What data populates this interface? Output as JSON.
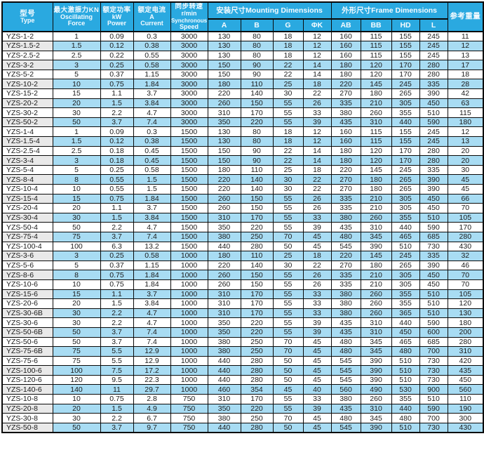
{
  "table": {
    "title_semantic": "YZS vibration motor specification table",
    "columns": {
      "type": {
        "zh": "型号",
        "en": "Type"
      },
      "force": {
        "zh": "最大激振力KN",
        "en1": "Oscillating",
        "en2": "Force"
      },
      "power": {
        "zh": "额定功率",
        "unit": "kW",
        "en": "Power"
      },
      "current": {
        "zh": "额定电流",
        "unit": "A",
        "en": "Current"
      },
      "speed": {
        "zh": "同步转速",
        "unit": "r/min",
        "en1": "Synchronous",
        "en2": "Speed"
      },
      "mounting": {
        "label": "安装尺寸Mounting Dimensions",
        "subs": [
          "A",
          "B",
          "G",
          "ΦK"
        ]
      },
      "frame": {
        "label": "外形尺寸Frame Dimensions",
        "subs": [
          "AB",
          "BB",
          "HD",
          "L"
        ]
      },
      "weight": {
        "zh": "参考重量"
      }
    },
    "rows": [
      {
        "model": "YZS-1-2",
        "values": [
          "1",
          "0.09",
          "0.3",
          "3000",
          "130",
          "80",
          "18",
          "12",
          "160",
          "115",
          "155",
          "245",
          "11"
        ]
      },
      {
        "model": "YZS-1.5-2",
        "values": [
          "1.5",
          "0.12",
          "0.38",
          "3000",
          "130",
          "80",
          "18",
          "12",
          "160",
          "115",
          "155",
          "245",
          "12"
        ]
      },
      {
        "model": "YZS-2.5-2",
        "values": [
          "2.5",
          "0.22",
          "0.55",
          "3000",
          "130",
          "80",
          "18",
          "12",
          "160",
          "115",
          "155",
          "245",
          "13"
        ]
      },
      {
        "model": "YZS-3-2",
        "values": [
          "3",
          "0.25",
          "0.58",
          "3000",
          "150",
          "90",
          "22",
          "14",
          "180",
          "120",
          "170",
          "280",
          "17"
        ]
      },
      {
        "model": "YZS-5-2",
        "values": [
          "5",
          "0.37",
          "1.15",
          "3000",
          "150",
          "90",
          "22",
          "14",
          "180",
          "120",
          "170",
          "280",
          "18"
        ]
      },
      {
        "model": "YZS-10-2",
        "values": [
          "10",
          "0.75",
          "1.84",
          "3000",
          "180",
          "110",
          "25",
          "18",
          "220",
          "145",
          "245",
          "335",
          "28"
        ]
      },
      {
        "model": "YZS-15-2",
        "values": [
          "15",
          "1.1",
          "3.7",
          "3000",
          "220",
          "140",
          "30",
          "22",
          "270",
          "180",
          "265",
          "390",
          "42"
        ]
      },
      {
        "model": "YZS-20-2",
        "values": [
          "20",
          "1.5",
          "3.84",
          "3000",
          "260",
          "150",
          "55",
          "26",
          "335",
          "210",
          "305",
          "450",
          "63"
        ]
      },
      {
        "model": "YZS-30-2",
        "values": [
          "30",
          "2.2",
          "4.7",
          "3000",
          "310",
          "170",
          "55",
          "33",
          "380",
          "260",
          "355",
          "510",
          "115"
        ]
      },
      {
        "model": "YZS-50-2",
        "values": [
          "50",
          "3.7",
          "7.4",
          "3000",
          "350",
          "220",
          "55",
          "39",
          "435",
          "310",
          "440",
          "590",
          "180"
        ]
      },
      {
        "model": "YZS-1-4",
        "values": [
          "1",
          "0.09",
          "0.3",
          "1500",
          "130",
          "80",
          "18",
          "12",
          "160",
          "115",
          "155",
          "245",
          "12"
        ]
      },
      {
        "model": "YZS-1.5-4",
        "values": [
          "1.5",
          "0.12",
          "0.38",
          "1500",
          "130",
          "80",
          "18",
          "12",
          "160",
          "115",
          "155",
          "245",
          "13"
        ]
      },
      {
        "model": "YZS-2.5-4",
        "values": [
          "2.5",
          "0.18",
          "0.45",
          "1500",
          "150",
          "90",
          "22",
          "14",
          "180",
          "120",
          "170",
          "280",
          "20"
        ]
      },
      {
        "model": "YZS-3-4",
        "values": [
          "3",
          "0.18",
          "0.45",
          "1500",
          "150",
          "90",
          "22",
          "14",
          "180",
          "120",
          "170",
          "280",
          "20"
        ]
      },
      {
        "model": "YZS-5-4",
        "values": [
          "5",
          "0.25",
          "0.58",
          "1500",
          "180",
          "110",
          "25",
          "18",
          "220",
          "145",
          "245",
          "335",
          "30"
        ]
      },
      {
        "model": "YZS-8-4",
        "values": [
          "8",
          "0.55",
          "1.5",
          "1500",
          "220",
          "140",
          "30",
          "22",
          "270",
          "180",
          "265",
          "390",
          "45"
        ]
      },
      {
        "model": "YZS-10-4",
        "values": [
          "10",
          "0.55",
          "1.5",
          "1500",
          "220",
          "140",
          "30",
          "22",
          "270",
          "180",
          "265",
          "390",
          "45"
        ]
      },
      {
        "model": "YZS-15-4",
        "values": [
          "15",
          "0.75",
          "1.84",
          "1500",
          "260",
          "150",
          "55",
          "26",
          "335",
          "210",
          "305",
          "450",
          "66"
        ]
      },
      {
        "model": "YZS-20-4",
        "values": [
          "20",
          "1.1",
          "3.7",
          "1500",
          "260",
          "150",
          "55",
          "26",
          "335",
          "210",
          "305",
          "450",
          "70"
        ]
      },
      {
        "model": "YZS-30-4",
        "values": [
          "30",
          "1.5",
          "3.84",
          "1500",
          "310",
          "170",
          "55",
          "33",
          "380",
          "260",
          "355",
          "510",
          "105"
        ]
      },
      {
        "model": "YZS-50-4",
        "values": [
          "50",
          "2.2",
          "4.7",
          "1500",
          "350",
          "220",
          "55",
          "39",
          "435",
          "310",
          "440",
          "590",
          "170"
        ]
      },
      {
        "model": "YZS-75-4",
        "values": [
          "75",
          "3.7",
          "7.4",
          "1500",
          "380",
          "250",
          "70",
          "45",
          "480",
          "345",
          "465",
          "685",
          "280"
        ]
      },
      {
        "model": "YZS-100-4",
        "values": [
          "100",
          "6.3",
          "13.2",
          "1500",
          "440",
          "280",
          "50",
          "45",
          "545",
          "390",
          "510",
          "730",
          "430"
        ]
      },
      {
        "model": "YZS-3-6",
        "values": [
          "3",
          "0.25",
          "0.58",
          "1000",
          "180",
          "110",
          "25",
          "18",
          "220",
          "145",
          "245",
          "335",
          "32"
        ]
      },
      {
        "model": "YZS-5-6",
        "values": [
          "5",
          "0.37",
          "1.15",
          "1000",
          "220",
          "140",
          "30",
          "22",
          "270",
          "180",
          "265",
          "390",
          "46"
        ]
      },
      {
        "model": "YZS-8-6",
        "values": [
          "8",
          "0.75",
          "1.84",
          "1000",
          "260",
          "150",
          "55",
          "26",
          "335",
          "210",
          "305",
          "450",
          "70"
        ]
      },
      {
        "model": "YZS-10-6",
        "values": [
          "10",
          "0.75",
          "1.84",
          "1000",
          "260",
          "150",
          "55",
          "26",
          "335",
          "210",
          "305",
          "450",
          "70"
        ]
      },
      {
        "model": "YZS-15-6",
        "values": [
          "15",
          "1.1",
          "3.7",
          "1000",
          "310",
          "170",
          "55",
          "33",
          "380",
          "260",
          "355",
          "510",
          "105"
        ]
      },
      {
        "model": "YZS-20-6",
        "values": [
          "20",
          "1.5",
          "3.84",
          "1000",
          "310",
          "170",
          "55",
          "33",
          "380",
          "260",
          "355",
          "510",
          "120"
        ]
      },
      {
        "model": "YZS-30-6B",
        "values": [
          "30",
          "2.2",
          "4.7",
          "1000",
          "310",
          "170",
          "55",
          "33",
          "380",
          "260",
          "365",
          "510",
          "130"
        ]
      },
      {
        "model": "YZS-30-6",
        "values": [
          "30",
          "2.2",
          "4.7",
          "1000",
          "350",
          "220",
          "55",
          "39",
          "435",
          "310",
          "440",
          "590",
          "180"
        ]
      },
      {
        "model": "YZS-50-6B",
        "values": [
          "50",
          "3.7",
          "7.4",
          "1000",
          "350",
          "220",
          "55",
          "39",
          "435",
          "310",
          "450",
          "600",
          "200"
        ]
      },
      {
        "model": "YZS-50-6",
        "values": [
          "50",
          "3.7",
          "7.4",
          "1000",
          "380",
          "250",
          "70",
          "45",
          "480",
          "345",
          "465",
          "685",
          "280"
        ]
      },
      {
        "model": "YZS-75-6B",
        "values": [
          "75",
          "5.5",
          "12.9",
          "1000",
          "380",
          "250",
          "70",
          "45",
          "480",
          "345",
          "480",
          "700",
          "310"
        ]
      },
      {
        "model": "YZS-75-6",
        "values": [
          "75",
          "5.5",
          "12.9",
          "1000",
          "440",
          "280",
          "50",
          "45",
          "545",
          "390",
          "510",
          "730",
          "420"
        ]
      },
      {
        "model": "YZS-100-6",
        "values": [
          "100",
          "7.5",
          "17.2",
          "1000",
          "440",
          "280",
          "50",
          "45",
          "545",
          "390",
          "510",
          "730",
          "435"
        ]
      },
      {
        "model": "YZS-120-6",
        "values": [
          "120",
          "9.5",
          "22.3",
          "1000",
          "440",
          "280",
          "50",
          "45",
          "545",
          "390",
          "510",
          "730",
          "450"
        ]
      },
      {
        "model": "YZS-140-6",
        "values": [
          "140",
          "11",
          "29.7",
          "1000",
          "460",
          "354",
          "45",
          "40",
          "560",
          "490",
          "530",
          "900",
          "560"
        ]
      },
      {
        "model": "YZS-10-8",
        "values": [
          "10",
          "0.75",
          "2.8",
          "750",
          "310",
          "170",
          "55",
          "33",
          "380",
          "260",
          "355",
          "510",
          "110"
        ]
      },
      {
        "model": "YZS-20-8",
        "values": [
          "20",
          "1.5",
          "4.9",
          "750",
          "350",
          "220",
          "55",
          "39",
          "435",
          "310",
          "440",
          "590",
          "190"
        ]
      },
      {
        "model": "YZS-30-8",
        "values": [
          "30",
          "2.2",
          "6.7",
          "750",
          "380",
          "250",
          "70",
          "45",
          "480",
          "345",
          "480",
          "700",
          "300"
        ]
      },
      {
        "model": "YZS-50-8",
        "values": [
          "50",
          "3.7",
          "9.7",
          "750",
          "440",
          "280",
          "50",
          "45",
          "545",
          "390",
          "510",
          "730",
          "430"
        ]
      }
    ]
  },
  "colors": {
    "header_bg": "#2aa9e0",
    "alt_row_bg": "#a8dcf3",
    "alt_model_bg": "#e9e9e9",
    "border": "#0a0a0a",
    "header_text": "#f4fbff"
  }
}
